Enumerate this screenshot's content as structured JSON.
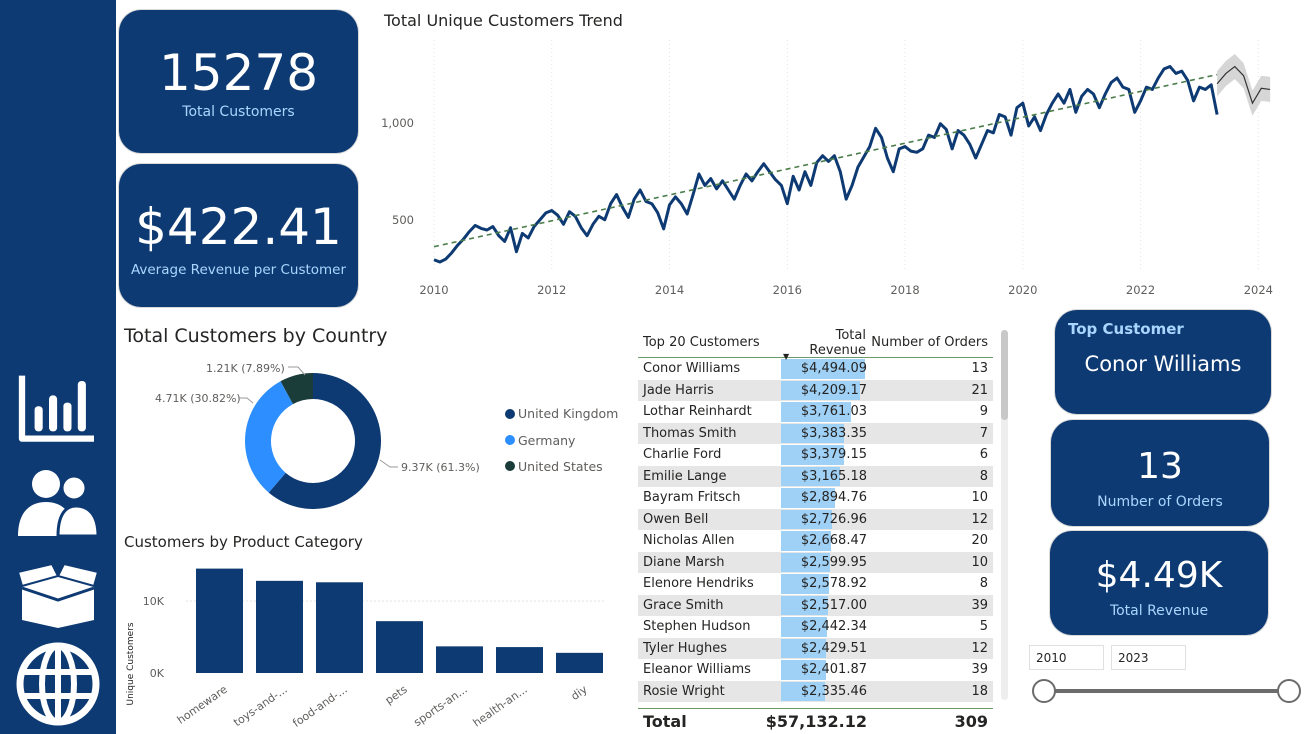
{
  "cards": {
    "total_customers": {
      "value": "15278",
      "label": "Total Customers"
    },
    "avg_revenue": {
      "value": "$422.41",
      "label": "Average Revenue per Customer"
    },
    "top_customer": {
      "label": "Top Customer",
      "value": "Conor Williams"
    },
    "orders": {
      "value": "13",
      "label": "Number of Orders"
    },
    "revenue": {
      "value": "$4.49K",
      "label": "Total Revenue"
    }
  },
  "sidebar": {
    "icons": [
      "bar-chart-icon",
      "users-icon",
      "open-box-icon",
      "globe-icon"
    ]
  },
  "trend": {
    "title": "Total Unique Customers Trend",
    "y_ticks": [
      "500",
      "1,000"
    ],
    "x_ticks": [
      "2010",
      "2012",
      "2014",
      "2016",
      "2018",
      "2020",
      "2022",
      "2024"
    ]
  },
  "donut": {
    "title": "Total Customers by Country",
    "labels": [
      "1.21K (7.89%)",
      "4.71K (30.82%)",
      "9.37K (61.3%)"
    ],
    "legend": [
      "United Kingdom",
      "Germany",
      "United States"
    ],
    "colors": [
      "#0e3a73",
      "#2d8fff",
      "#1a3d3a"
    ]
  },
  "category": {
    "title": "Customers by Product Category",
    "ylabel": "Unique Customers",
    "y_ticks": [
      "0K",
      "10K"
    ],
    "categories": [
      "homeware",
      "toys-and-...",
      "food-and-...",
      "pets",
      "sports-an...",
      "health-an...",
      "diy"
    ]
  },
  "table": {
    "headers": [
      "Top 20 Customers",
      "Total Revenue",
      "Number of Orders"
    ],
    "rows": [
      {
        "name": "Conor Williams",
        "revenue": "$4,494.09",
        "orders": "13"
      },
      {
        "name": "Jade Harris",
        "revenue": "$4,209.17",
        "orders": "21"
      },
      {
        "name": "Lothar Reinhardt",
        "revenue": "$3,761.03",
        "orders": "9"
      },
      {
        "name": "Thomas Smith",
        "revenue": "$3,383.35",
        "orders": "7"
      },
      {
        "name": "Charlie Ford",
        "revenue": "$3,379.15",
        "orders": "6"
      },
      {
        "name": "Emilie Lange",
        "revenue": "$3,165.18",
        "orders": "8"
      },
      {
        "name": "Bayram Fritsch",
        "revenue": "$2,894.76",
        "orders": "10"
      },
      {
        "name": "Owen Bell",
        "revenue": "$2,726.96",
        "orders": "12"
      },
      {
        "name": "Nicholas Allen",
        "revenue": "$2,668.47",
        "orders": "20"
      },
      {
        "name": "Diane Marsh",
        "revenue": "$2,599.95",
        "orders": "10"
      },
      {
        "name": "Elenore Hendriks",
        "revenue": "$2,578.92",
        "orders": "8"
      },
      {
        "name": "Grace Smith",
        "revenue": "$2,517.00",
        "orders": "39"
      },
      {
        "name": "Stephen Hudson",
        "revenue": "$2,442.34",
        "orders": "5"
      },
      {
        "name": "Tyler Hughes",
        "revenue": "$2,429.51",
        "orders": "12"
      },
      {
        "name": "Eleanor Williams",
        "revenue": "$2,401.87",
        "orders": "39"
      },
      {
        "name": "Rosie Wright",
        "revenue": "$2,335.46",
        "orders": "18"
      }
    ],
    "total": {
      "label": "Total",
      "revenue": "$57,132.12",
      "orders": "309"
    }
  },
  "slicer": {
    "from": "2010",
    "to": "2023"
  },
  "chart_data": [
    {
      "type": "line",
      "title": "Total Unique Customers Trend",
      "x_range": [
        2010,
        2024.3
      ],
      "ylim": [
        270,
        1320
      ],
      "series": [
        {
          "values": [
            [
              2010.0,
              315
            ],
            [
              2010.1,
              305
            ],
            [
              2010.2,
              318
            ],
            [
              2010.3,
              345
            ],
            [
              2010.4,
              378
            ],
            [
              2010.5,
              405
            ],
            [
              2010.6,
              438
            ],
            [
              2010.7,
              465
            ],
            [
              2010.8,
              452
            ],
            [
              2010.9,
              445
            ],
            [
              2011.0,
              460
            ],
            [
              2011.1,
              420
            ],
            [
              2011.2,
              395
            ],
            [
              2011.3,
              455
            ],
            [
              2011.4,
              350
            ],
            [
              2011.5,
              430
            ],
            [
              2011.6,
              410
            ],
            [
              2011.7,
              460
            ],
            [
              2011.8,
              490
            ],
            [
              2011.9,
              520
            ],
            [
              2012.0,
              530
            ],
            [
              2012.1,
              510
            ],
            [
              2012.2,
              470
            ],
            [
              2012.3,
              525
            ],
            [
              2012.4,
              505
            ],
            [
              2012.5,
              455
            ],
            [
              2012.6,
              420
            ],
            [
              2012.7,
              470
            ],
            [
              2012.8,
              505
            ],
            [
              2012.9,
              490
            ],
            [
              2013.0,
              560
            ],
            [
              2013.1,
              600
            ],
            [
              2013.2,
              545
            ],
            [
              2013.3,
              500
            ],
            [
              2013.4,
              580
            ],
            [
              2013.5,
              620
            ],
            [
              2013.6,
              570
            ],
            [
              2013.7,
              560
            ],
            [
              2013.8,
              520
            ],
            [
              2013.9,
              450
            ],
            [
              2014.0,
              555
            ],
            [
              2014.1,
              590
            ],
            [
              2014.2,
              560
            ],
            [
              2014.3,
              515
            ],
            [
              2014.4,
              600
            ],
            [
              2014.5,
              690
            ],
            [
              2014.6,
              640
            ],
            [
              2014.7,
              670
            ],
            [
              2014.8,
              625
            ],
            [
              2014.9,
              660
            ],
            [
              2015.0,
              620
            ],
            [
              2015.1,
              580
            ],
            [
              2015.2,
              640
            ],
            [
              2015.3,
              690
            ],
            [
              2015.4,
              660
            ],
            [
              2015.5,
              700
            ],
            [
              2015.6,
              735
            ],
            [
              2015.7,
              700
            ],
            [
              2015.8,
              665
            ],
            [
              2015.9,
              640
            ],
            [
              2016.0,
              560
            ],
            [
              2016.1,
              680
            ],
            [
              2016.2,
              620
            ],
            [
              2016.3,
              700
            ],
            [
              2016.4,
              640
            ],
            [
              2016.5,
              740
            ],
            [
              2016.6,
              770
            ],
            [
              2016.7,
              745
            ],
            [
              2016.8,
              770
            ],
            [
              2016.9,
              700
            ],
            [
              2017.0,
              580
            ],
            [
              2017.1,
              640
            ],
            [
              2017.2,
              720
            ],
            [
              2017.3,
              765
            ],
            [
              2017.4,
              810
            ],
            [
              2017.5,
              890
            ],
            [
              2017.6,
              850
            ],
            [
              2017.7,
              760
            ],
            [
              2017.8,
              700
            ],
            [
              2017.9,
              800
            ],
            [
              2018.0,
              810
            ],
            [
              2018.1,
              790
            ],
            [
              2018.2,
              785
            ],
            [
              2018.3,
              800
            ],
            [
              2018.4,
              860
            ],
            [
              2018.5,
              850
            ],
            [
              2018.6,
              910
            ],
            [
              2018.7,
              885
            ],
            [
              2018.8,
              800
            ],
            [
              2018.9,
              880
            ],
            [
              2019.0,
              860
            ],
            [
              2019.1,
              820
            ],
            [
              2019.2,
              760
            ],
            [
              2019.3,
              820
            ],
            [
              2019.4,
              880
            ],
            [
              2019.5,
              870
            ],
            [
              2019.6,
              950
            ],
            [
              2019.7,
              940
            ],
            [
              2019.8,
              860
            ],
            [
              2019.9,
              980
            ],
            [
              2020.0,
              1000
            ],
            [
              2020.1,
              900
            ],
            [
              2020.2,
              940
            ],
            [
              2020.3,
              880
            ],
            [
              2020.4,
              950
            ],
            [
              2020.5,
              1000
            ],
            [
              2020.6,
              1040
            ],
            [
              2020.7,
              1000
            ],
            [
              2020.8,
              1060
            ],
            [
              2020.9,
              960
            ],
            [
              2021.0,
              1030
            ],
            [
              2021.1,
              1060
            ],
            [
              2021.2,
              1040
            ],
            [
              2021.3,
              980
            ],
            [
              2021.4,
              1040
            ],
            [
              2021.5,
              1090
            ],
            [
              2021.6,
              1110
            ],
            [
              2021.7,
              1070
            ],
            [
              2021.8,
              1060
            ],
            [
              2021.9,
              960
            ],
            [
              2022.0,
              1010
            ],
            [
              2022.1,
              1070
            ],
            [
              2022.2,
              1060
            ],
            [
              2022.3,
              1110
            ],
            [
              2022.4,
              1150
            ],
            [
              2022.5,
              1160
            ],
            [
              2022.6,
              1130
            ],
            [
              2022.7,
              1140
            ],
            [
              2022.8,
              1100
            ],
            [
              2022.9,
              1010
            ],
            [
              2023.0,
              1070
            ],
            [
              2023.1,
              1060
            ],
            [
              2023.2,
              1080
            ],
            [
              2023.3,
              950
            ]
          ]
        },
        {
          "name": "trend",
          "values": [
            [
              2010.0,
              372
            ],
            [
              2023.3,
              1125
            ]
          ]
        },
        {
          "name": "forecast",
          "values": [
            [
              2023.3,
              1085
            ],
            [
              2023.45,
              1130
            ],
            [
              2023.6,
              1160
            ],
            [
              2023.75,
              1120
            ],
            [
              2023.9,
              1000
            ],
            [
              2024.05,
              1065
            ],
            [
              2024.2,
              1060
            ]
          ]
        }
      ]
    },
    {
      "type": "pie",
      "title": "Total Customers by Country",
      "categories": [
        "United Kingdom",
        "Germany",
        "United States"
      ],
      "values": [
        9370,
        4710,
        1210
      ],
      "percent": [
        61.3,
        30.82,
        7.89
      ]
    },
    {
      "type": "bar",
      "title": "Customers by Product Category",
      "ylabel": "Unique Customers",
      "categories": [
        "homeware",
        "toys-and-...",
        "food-and-...",
        "pets",
        "sports-an...",
        "health-an...",
        "diy"
      ],
      "values": [
        14500,
        12800,
        12600,
        7200,
        3700,
        3600,
        2800
      ],
      "ylim": [
        0,
        15000
      ]
    },
    {
      "type": "table",
      "title": "Top 20 Customers",
      "revenue_values": [
        4494.09,
        4209.17,
        3761.03,
        3383.35,
        3379.15,
        3165.18,
        2894.76,
        2726.96,
        2668.47,
        2599.95,
        2578.92,
        2517.0,
        2442.34,
        2429.51,
        2401.87,
        2335.46
      ]
    }
  ]
}
